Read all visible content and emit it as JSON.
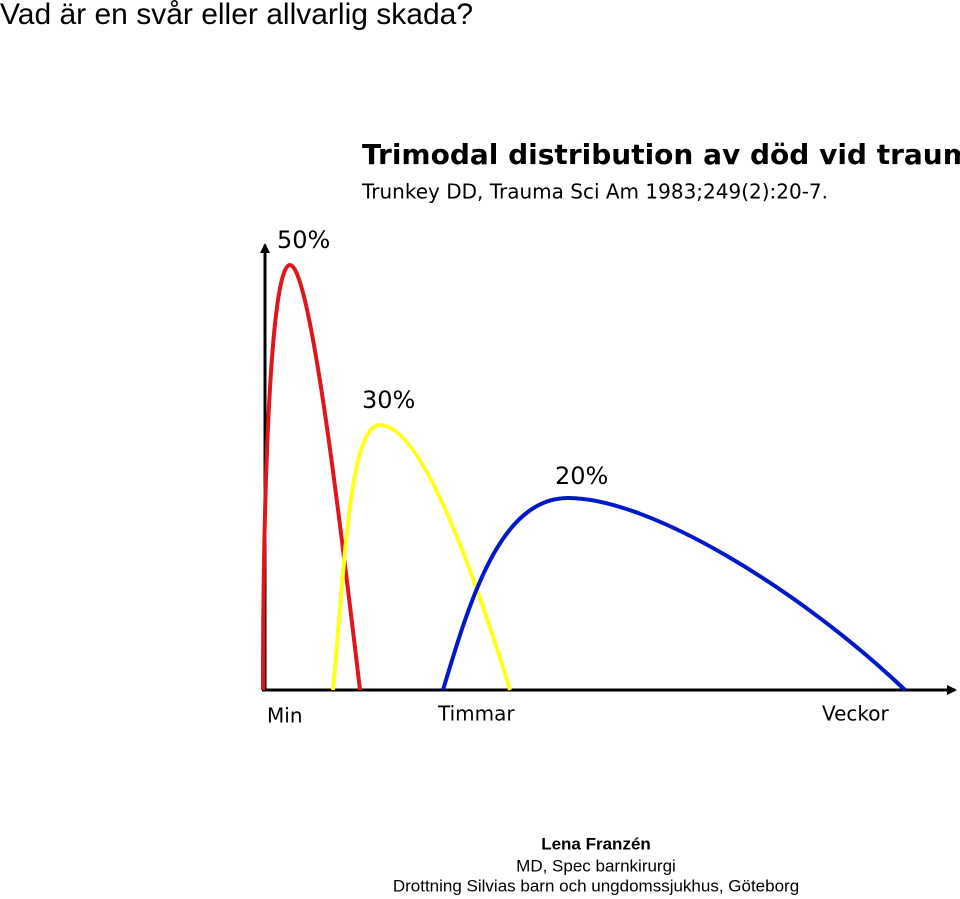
{
  "header": {
    "title": "Vad är en svår eller allvarlig skada?"
  },
  "diagram": {
    "title": "Trimodal distribution av död vid trauma",
    "citation": "Trunkey DD, Trauma Sci Am 1983;249(2):20-7.",
    "peaks": [
      "50%",
      "30%",
      "20%"
    ],
    "x_labels": [
      "Min",
      "Timmar",
      "Veckor"
    ]
  },
  "footer": {
    "name": "Lena Franzén",
    "role": "MD, Spec barnkirurgi",
    "place": "Drottning Silvias barn och ungdomssjukhus, Göteborg"
  }
}
